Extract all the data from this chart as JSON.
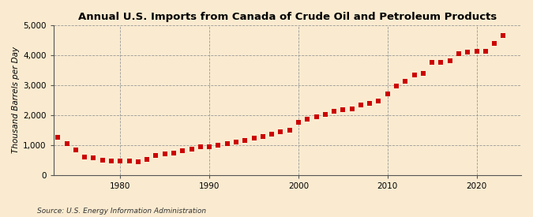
{
  "title": "Annual U.S. Imports from Canada of Crude Oil and Petroleum Products",
  "ylabel": "Thousand Barrels per Day",
  "source": "Source: U.S. Energy Information Administration",
  "background_color": "#faebd0",
  "plot_bg_color": "#faebd0",
  "marker_color": "#cc0000",
  "grid_color": "#999999",
  "ylim": [
    0,
    5000
  ],
  "yticks": [
    0,
    1000,
    2000,
    3000,
    4000,
    5000
  ],
  "xlim": [
    1972.5,
    2025
  ],
  "xticks": [
    1980,
    1990,
    2000,
    2010,
    2020
  ],
  "years": [
    1973,
    1974,
    1975,
    1976,
    1977,
    1978,
    1979,
    1980,
    1981,
    1982,
    1983,
    1984,
    1985,
    1986,
    1987,
    1988,
    1989,
    1990,
    1991,
    1992,
    1993,
    1994,
    1995,
    1996,
    1997,
    1998,
    1999,
    2000,
    2001,
    2002,
    2003,
    2004,
    2005,
    2006,
    2007,
    2008,
    2009,
    2010,
    2011,
    2012,
    2013,
    2014,
    2015,
    2016,
    2017,
    2018,
    2019,
    2020,
    2021,
    2022,
    2023
  ],
  "values": [
    1270,
    1050,
    830,
    600,
    560,
    500,
    470,
    455,
    455,
    450,
    510,
    640,
    700,
    730,
    800,
    870,
    940,
    950,
    1000,
    1050,
    1100,
    1150,
    1220,
    1280,
    1370,
    1430,
    1500,
    1770,
    1870,
    1930,
    2030,
    2130,
    2180,
    2200,
    2350,
    2400,
    2460,
    2700,
    2960,
    3120,
    3330,
    3380,
    3750,
    3760,
    3820,
    4050,
    4090,
    4130,
    4120,
    4380,
    4650
  ]
}
